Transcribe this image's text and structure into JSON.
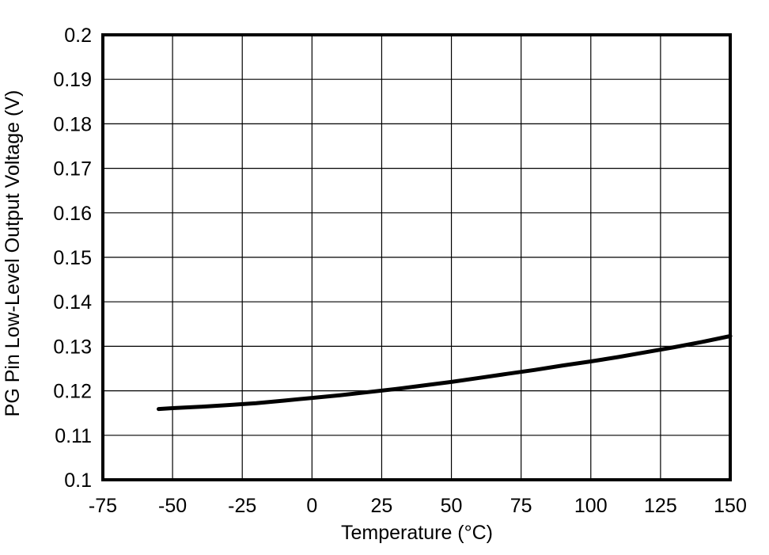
{
  "chart_data": {
    "type": "line",
    "title": "",
    "xlabel": "Temperature (°C)",
    "ylabel": "PG Pin Low-Level Output Voltage (V)",
    "xlim": [
      -75,
      150
    ],
    "ylim": [
      0.1,
      0.2
    ],
    "x_ticks": [
      -75,
      -50,
      -25,
      0,
      25,
      50,
      75,
      100,
      125,
      150
    ],
    "x_tick_labels": [
      "-75",
      "-50",
      "-25",
      "0",
      "25",
      "50",
      "75",
      "100",
      "125",
      "150"
    ],
    "y_ticks": [
      0.2,
      0.19,
      0.18,
      0.17,
      0.16,
      0.15,
      0.14,
      0.13,
      0.12,
      0.11,
      0.1
    ],
    "y_tick_labels": [
      "0.2",
      "0.19",
      "0.18",
      "0.17",
      "0.16",
      "0.15",
      "0.14",
      "0.13",
      "0.12",
      "0.11",
      "0.1"
    ],
    "grid": true,
    "legend": "none",
    "series": [
      {
        "x": [
          -55,
          -50,
          -40,
          -30,
          -20,
          -10,
          0,
          10,
          20,
          30,
          40,
          50,
          60,
          70,
          80,
          90,
          100,
          110,
          120,
          130,
          140,
          150
        ],
        "y": [
          0.1159,
          0.1161,
          0.1164,
          0.1168,
          0.1172,
          0.1178,
          0.1184,
          0.119,
          0.1197,
          0.1204,
          0.1212,
          0.122,
          0.1229,
          0.1238,
          0.1247,
          0.1257,
          0.1266,
          0.1276,
          0.1287,
          0.1298,
          0.131,
          0.1323
        ]
      }
    ],
    "colors": {
      "background": "#ffffff",
      "frame": "#000000",
      "grid": "#000000",
      "line": "#000000",
      "text": "#000000"
    }
  }
}
